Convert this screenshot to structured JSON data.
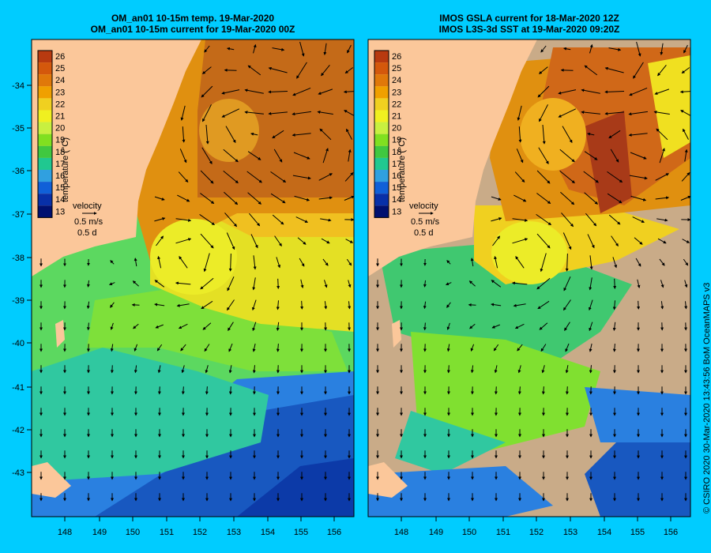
{
  "panels": [
    {
      "title_line1": "OM_an01 10-15m temp. 19-Mar-2020",
      "title_line2": "OM_an01 10-15m current for 19-Mar-2020 00Z"
    },
    {
      "title_line1": "IMOS GSLA current for 18-Mar-2020 12Z",
      "title_line2": "IMOS L3S-3d SST at 19-Mar-2020 09:20Z"
    }
  ],
  "colorbar": {
    "label": "temperature (°C)",
    "ticks": [
      "26",
      "25",
      "24",
      "23",
      "22",
      "21",
      "20",
      "19",
      "18",
      "17",
      "16",
      "15",
      "14",
      "13"
    ],
    "colors": [
      "#b83a10",
      "#d4580c",
      "#e0780a",
      "#f0a000",
      "#f0d020",
      "#f0f020",
      "#c8f040",
      "#80e020",
      "#40c840",
      "#20c890",
      "#30a0e0",
      "#1060d8",
      "#0830a8",
      "#001070"
    ]
  },
  "velocity_legend": {
    "label": "velocity",
    "speed": "0.5 m/s",
    "duration": "0.5 d"
  },
  "axes": {
    "lon_ticks": [
      "148",
      "149",
      "150",
      "151",
      "152",
      "153",
      "154",
      "155",
      "156"
    ],
    "lat_ticks": [
      "-34",
      "-35",
      "-36",
      "-37",
      "-38",
      "-39",
      "-40",
      "-41",
      "-42",
      "-43"
    ]
  },
  "colors": {
    "land": "#fbc79a",
    "no_data": "#c9ab88",
    "background": "#00ccff"
  },
  "credit": "© CSIRO 2020   30-Mar-2020 13:43:56 BoM OceanMAPS v3"
}
